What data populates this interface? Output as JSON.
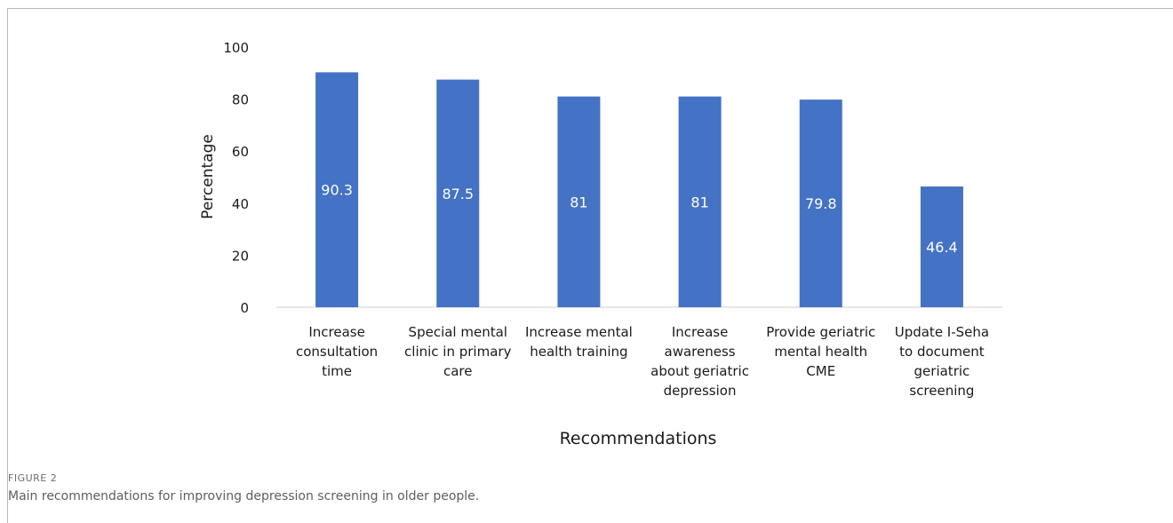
{
  "figure": {
    "label": "FIGURE 2",
    "caption": "Main recommendations for improving depression screening in older people."
  },
  "colors": {
    "bar": "#4472C4",
    "bar_label": "#ffffff",
    "axis_text": "#1a1a1a",
    "axis_line": "#cfcfcf"
  },
  "chart_data": {
    "type": "bar",
    "title": "",
    "xlabel": "Recommendations",
    "ylabel": "Percentage",
    "ylim": [
      0,
      100
    ],
    "yticks": [
      0,
      20,
      40,
      60,
      80,
      100
    ],
    "grid": false,
    "legend": "none",
    "categories": [
      [
        "Increase",
        "consultation",
        "time"
      ],
      [
        "Special mental",
        "clinic  in primary",
        "care"
      ],
      [
        "Increase mental",
        "health training"
      ],
      [
        "Increase",
        "awareness",
        "about geriatric",
        "depression"
      ],
      [
        "Provide geriatric",
        "mental health",
        "CME"
      ],
      [
        "Update I-Seha",
        "to document",
        "geriatric",
        "screening"
      ]
    ],
    "values": [
      90.3,
      87.5,
      81,
      81,
      79.8,
      46.4
    ],
    "data_labels": [
      "90.3",
      "87.5",
      "81",
      "81",
      "79.8",
      "46.4"
    ]
  }
}
